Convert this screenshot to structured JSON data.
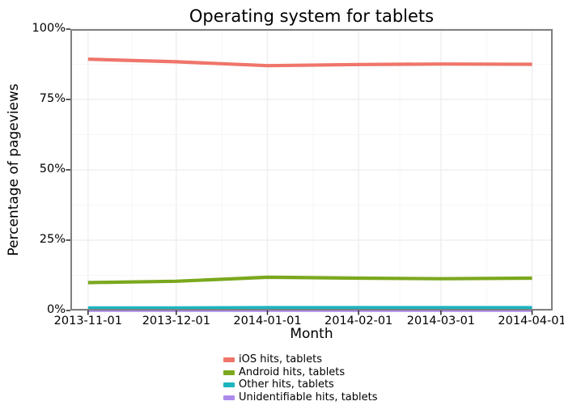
{
  "chart_data": {
    "type": "line",
    "title": "Operating system for tablets",
    "xlabel": "Month",
    "ylabel": "Percentage of pageviews",
    "x": [
      "2013-11-01",
      "2013-12-01",
      "2014-01-01",
      "2014-02-01",
      "2014-03-01",
      "2014-04-01"
    ],
    "x_tick_labels": [
      "2013-11-01",
      "2013-12-01",
      "2014-01-01",
      "2014-02-01",
      "2014-03-01",
      "2014-04-01"
    ],
    "y_ticks": [
      {
        "value": 0,
        "label": "0%"
      },
      {
        "value": 25,
        "label": "25%"
      },
      {
        "value": 50,
        "label": "50%"
      },
      {
        "value": 75,
        "label": "75%"
      },
      {
        "value": 100,
        "label": "100%"
      }
    ],
    "y_minor_ticks": [
      12.5,
      37.5,
      62.5,
      87.5
    ],
    "ylim": [
      0,
      100
    ],
    "xlim": [
      "2013-10-26",
      "2014-04-08"
    ],
    "grid": "major-and-minor",
    "legend_position": "bottom",
    "series": [
      {
        "name": "iOS hits, tablets",
        "color": "#ef756a",
        "values": [
          89.3,
          88.4,
          87.0,
          87.4,
          87.6,
          87.5
        ]
      },
      {
        "name": "Android hits, tablets",
        "color": "#7aa81e",
        "values": [
          9.9,
          10.4,
          11.8,
          11.5,
          11.3,
          11.5
        ]
      },
      {
        "name": "Other hits, tablets",
        "color": "#1cb5c0",
        "values": [
          0.9,
          0.9,
          1.0,
          1.0,
          1.0,
          1.0
        ]
      },
      {
        "name": "Unidentifiable hits, tablets",
        "color": "#ac8aec",
        "values": [
          0.1,
          0.1,
          0.1,
          0.1,
          0.1,
          0.1
        ]
      }
    ],
    "style": {
      "panel_border_color": "#7f7f7f",
      "major_grid_color": "#f0eeee",
      "minor_grid_color": "#f8f6f6",
      "tick_mark_color": "#333333",
      "line_width": 4.2
    }
  }
}
